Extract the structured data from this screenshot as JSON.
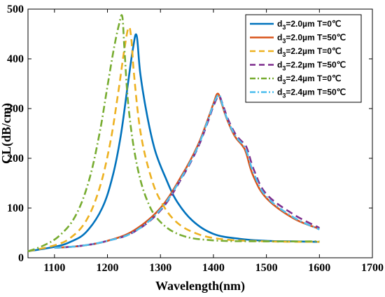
{
  "chart_data": {
    "type": "line",
    "xlabel": "Wavelength(nm)",
    "ylabel": "CL(dB/cm)",
    "xlim": [
      1050,
      1700
    ],
    "ylim": [
      0,
      500
    ],
    "xticks": [
      "1100",
      "1200",
      "1300",
      "1400",
      "1500",
      "1600",
      "1700"
    ],
    "yticks": [
      "0",
      "100",
      "200",
      "300",
      "400",
      "500"
    ],
    "legend_position": "top-right",
    "grid": false,
    "series": [
      {
        "name": "d3=2.0µm T=0℃",
        "legend": {
          "pre": "d",
          "sub": "3",
          "post": "=2.0µm T=0℃"
        },
        "color": "#0072BD",
        "dash": "solid",
        "x": [
          1050,
          1100,
          1130,
          1160,
          1190,
          1210,
          1225,
          1238,
          1248,
          1255,
          1262,
          1275,
          1290,
          1310,
          1330,
          1360,
          1400,
          1450,
          1500,
          1550,
          1600
        ],
        "y": [
          13,
          22,
          32,
          52,
          100,
          165,
          245,
          345,
          420,
          447,
          370,
          285,
          215,
          160,
          115,
          75,
          48,
          38,
          34,
          33,
          32
        ]
      },
      {
        "name": "d3=2.0µm T=50℃",
        "legend": {
          "pre": "d",
          "sub": "3",
          "post": "=2.0µm T=50℃"
        },
        "color": "#D95319",
        "dash": "solid",
        "x": [
          1100,
          1150,
          1200,
          1250,
          1300,
          1340,
          1370,
          1390,
          1400,
          1408,
          1415,
          1425,
          1440,
          1455,
          1462,
          1475,
          1500,
          1550,
          1600
        ],
        "y": [
          20,
          24,
          34,
          55,
          100,
          165,
          225,
          280,
          310,
          330,
          312,
          280,
          245,
          225,
          210,
          165,
          120,
          80,
          58
        ]
      },
      {
        "name": "d3=2.2µm T=0℃",
        "legend": {
          "pre": "d",
          "sub": "3",
          "post": "=2.2µm T=0℃"
        },
        "color": "#EDB120",
        "dash": "10,6",
        "x": [
          1050,
          1100,
          1130,
          1160,
          1185,
          1205,
          1220,
          1232,
          1240,
          1245,
          1250,
          1262,
          1280,
          1300,
          1330,
          1370,
          1420,
          1500,
          1600
        ],
        "y": [
          13,
          25,
          40,
          75,
          140,
          230,
          330,
          420,
          463,
          440,
          370,
          255,
          170,
          115,
          72,
          48,
          37,
          33,
          32
        ]
      },
      {
        "name": "d3=2.2µm T=50℃",
        "legend": {
          "pre": "d",
          "sub": "3",
          "post": "=2.2µm T=50℃"
        },
        "color": "#7E2F8E",
        "dash": "10,6",
        "x": [
          1100,
          1150,
          1200,
          1250,
          1300,
          1340,
          1370,
          1390,
          1400,
          1410,
          1417,
          1427,
          1442,
          1457,
          1464,
          1477,
          1500,
          1550,
          1600
        ],
        "y": [
          20,
          24,
          34,
          52,
          95,
          160,
          220,
          275,
          305,
          325,
          310,
          280,
          248,
          230,
          218,
          175,
          128,
          88,
          60
        ]
      },
      {
        "name": "d3=2.4µm T=0℃",
        "legend": {
          "pre": "d",
          "sub": "3",
          "post": "=2.4µm T=0℃"
        },
        "color": "#77AC30",
        "dash": "10,4,2,4",
        "x": [
          1050,
          1080,
          1110,
          1140,
          1165,
          1185,
          1200,
          1212,
          1222,
          1228,
          1232,
          1240,
          1255,
          1275,
          1300,
          1340,
          1400,
          1500,
          1600
        ],
        "y": [
          13,
          25,
          45,
          85,
          155,
          250,
          345,
          420,
          470,
          485,
          420,
          300,
          190,
          115,
          72,
          45,
          35,
          33,
          33
        ]
      },
      {
        "name": "d3=2.4µm T=50℃",
        "legend": {
          "pre": "d",
          "sub": "3",
          "post": "=2.4µm T=50℃"
        },
        "color": "#4DBEEE",
        "dash": "10,4,2,4",
        "x": [
          1100,
          1150,
          1200,
          1250,
          1300,
          1340,
          1370,
          1390,
          1400,
          1410,
          1416,
          1426,
          1441,
          1456,
          1463,
          1476,
          1500,
          1550,
          1600
        ],
        "y": [
          20,
          24,
          34,
          52,
          97,
          162,
          222,
          278,
          308,
          328,
          311,
          279,
          246,
          227,
          213,
          170,
          123,
          82,
          57
        ]
      }
    ]
  }
}
